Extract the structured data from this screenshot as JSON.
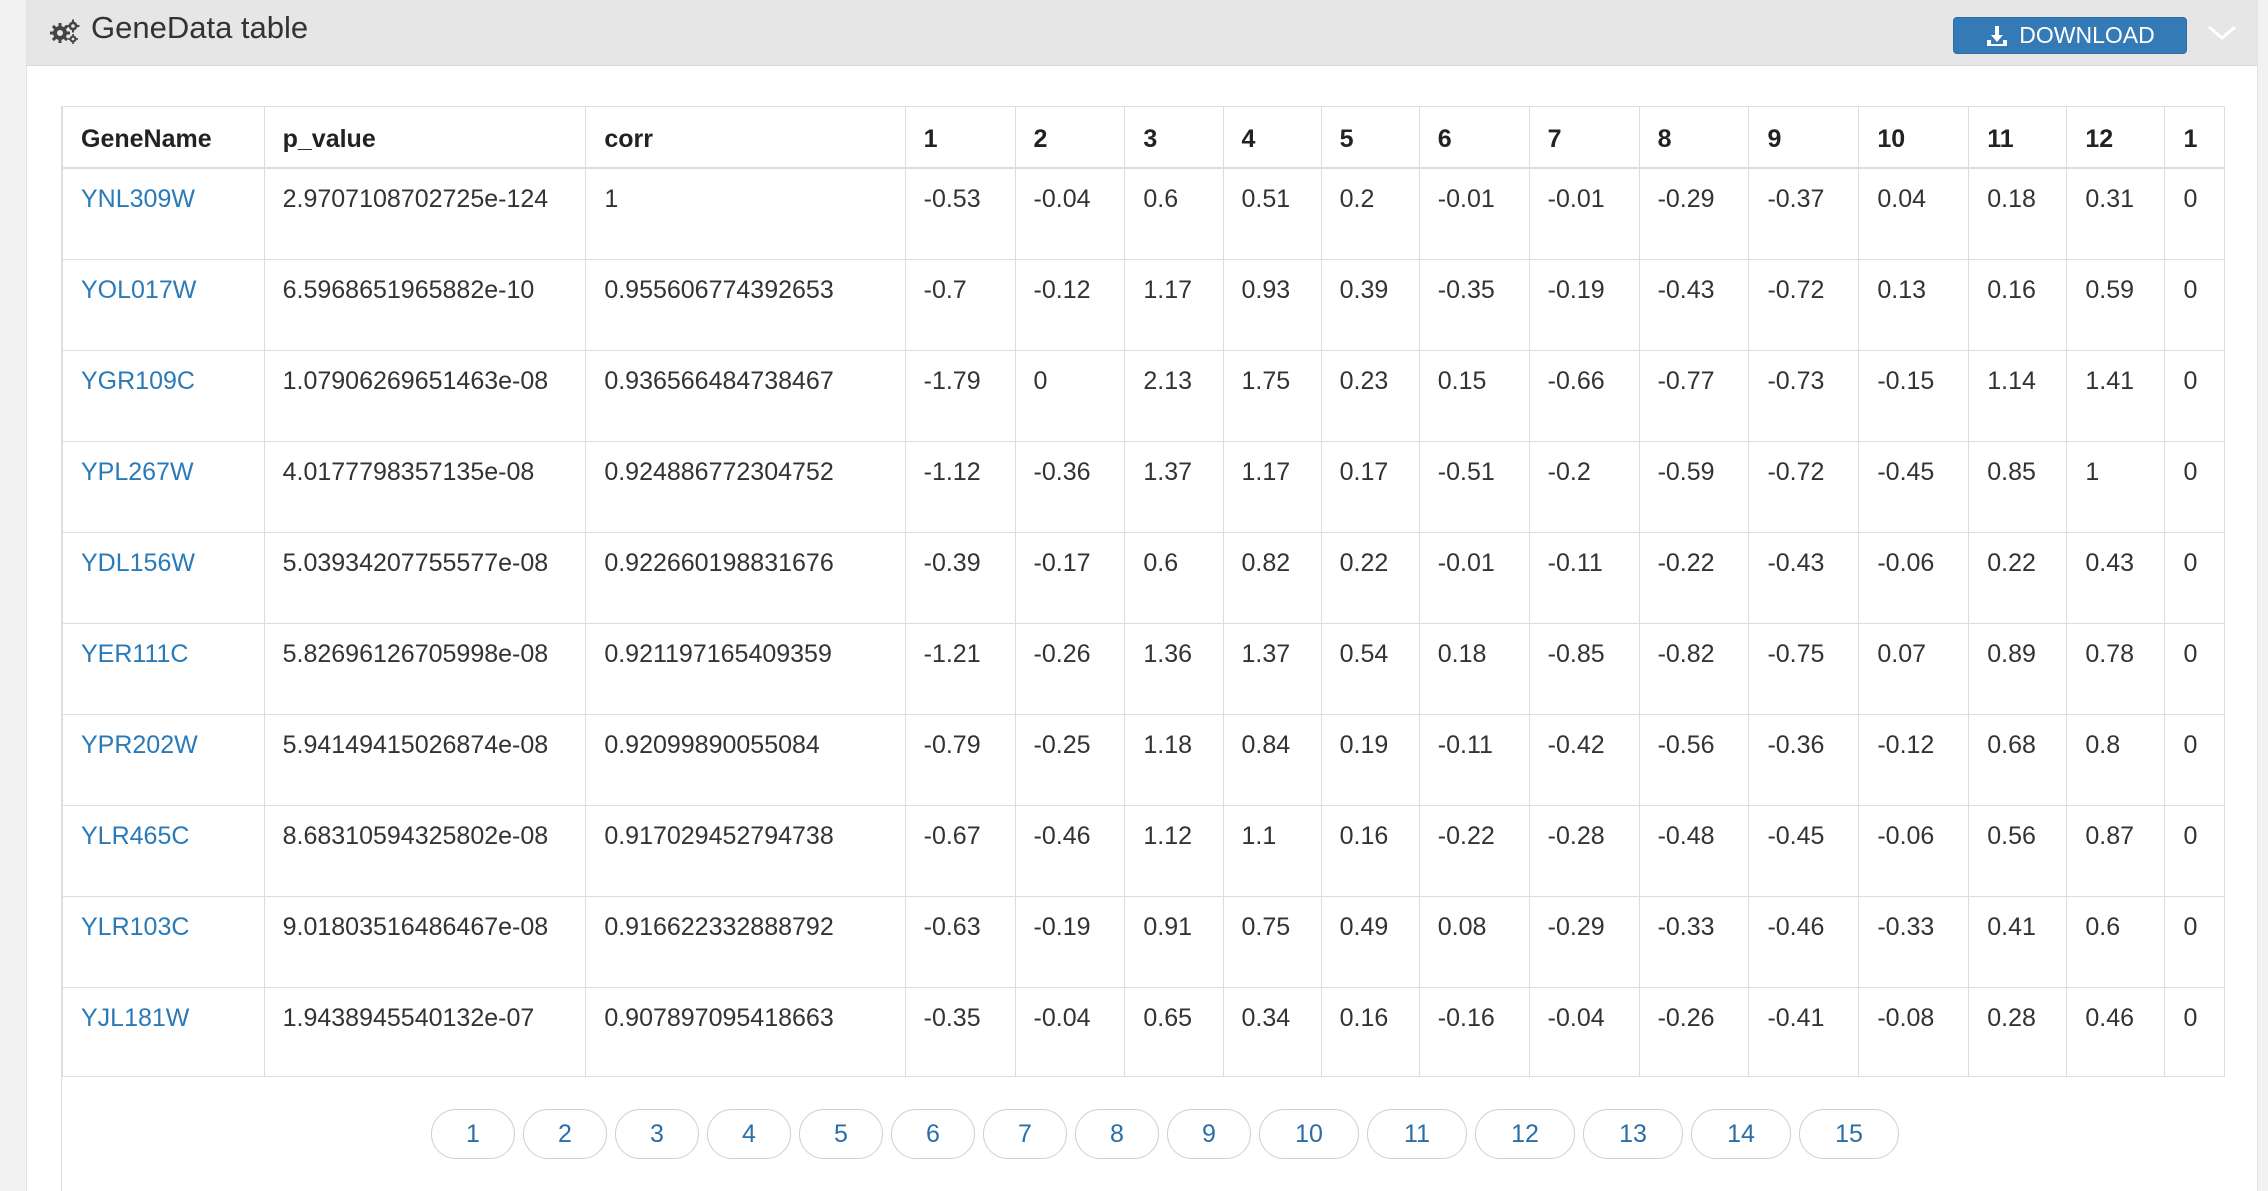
{
  "panel": {
    "title": "GeneData table",
    "icon": "gears-icon",
    "download_label": "DOWNLOAD",
    "accent": "#337ab7",
    "link_color": "#2a7ab8"
  },
  "table": {
    "headers": [
      "GeneName",
      "p_value",
      "corr",
      "1",
      "2",
      "3",
      "4",
      "5",
      "6",
      "7",
      "8",
      "9",
      "10",
      "11",
      "12",
      "1"
    ],
    "rows": [
      [
        "YNL309W",
        "2.9707108702725e-124",
        "1",
        "-0.53",
        "-0.04",
        "0.6",
        "0.51",
        "0.2",
        "-0.01",
        "-0.01",
        "-0.29",
        "-0.37",
        "0.04",
        "0.18",
        "0.31",
        "0"
      ],
      [
        "YOL017W",
        "6.5968651965882e-10",
        "0.955606774392653",
        "-0.7",
        "-0.12",
        "1.17",
        "0.93",
        "0.39",
        "-0.35",
        "-0.19",
        "-0.43",
        "-0.72",
        "0.13",
        "0.16",
        "0.59",
        "0"
      ],
      [
        "YGR109C",
        "1.07906269651463e-08",
        "0.936566484738467",
        "-1.79",
        "0",
        "2.13",
        "1.75",
        "0.23",
        "0.15",
        "-0.66",
        "-0.77",
        "-0.73",
        "-0.15",
        "1.14",
        "1.41",
        "0"
      ],
      [
        "YPL267W",
        "4.0177798357135e-08",
        "0.924886772304752",
        "-1.12",
        "-0.36",
        "1.37",
        "1.17",
        "0.17",
        "-0.51",
        "-0.2",
        "-0.59",
        "-0.72",
        "-0.45",
        "0.85",
        "1",
        "0"
      ],
      [
        "YDL156W",
        "5.03934207755577e-08",
        "0.922660198831676",
        "-0.39",
        "-0.17",
        "0.6",
        "0.82",
        "0.22",
        "-0.01",
        "-0.11",
        "-0.22",
        "-0.43",
        "-0.06",
        "0.22",
        "0.43",
        "0"
      ],
      [
        "YER111C",
        "5.82696126705998e-08",
        "0.921197165409359",
        "-1.21",
        "-0.26",
        "1.36",
        "1.37",
        "0.54",
        "0.18",
        "-0.85",
        "-0.82",
        "-0.75",
        "0.07",
        "0.89",
        "0.78",
        "0"
      ],
      [
        "YPR202W",
        "5.94149415026874e-08",
        "0.92099890055084",
        "-0.79",
        "-0.25",
        "1.18",
        "0.84",
        "0.19",
        "-0.11",
        "-0.42",
        "-0.56",
        "-0.36",
        "-0.12",
        "0.68",
        "0.8",
        "0"
      ],
      [
        "YLR465C",
        "8.68310594325802e-08",
        "0.917029452794738",
        "-0.67",
        "-0.46",
        "1.12",
        "1.1",
        "0.16",
        "-0.22",
        "-0.28",
        "-0.48",
        "-0.45",
        "-0.06",
        "0.56",
        "0.87",
        "0"
      ],
      [
        "YLR103C",
        "9.01803516486467e-08",
        "0.916622332888792",
        "-0.63",
        "-0.19",
        "0.91",
        "0.75",
        "0.49",
        "0.08",
        "-0.29",
        "-0.33",
        "-0.46",
        "-0.33",
        "0.41",
        "0.6",
        "0"
      ],
      [
        "YJL181W",
        "1.9438945540132e-07",
        "0.907897095418663",
        "-0.35",
        "-0.04",
        "0.65",
        "0.34",
        "0.16",
        "-0.16",
        "-0.04",
        "-0.26",
        "-0.41",
        "-0.08",
        "0.28",
        "0.46",
        "0"
      ]
    ]
  },
  "pagination": {
    "pages": [
      "1",
      "2",
      "3",
      "4",
      "5",
      "6",
      "7",
      "8",
      "9",
      "10",
      "11",
      "12",
      "13",
      "14",
      "15"
    ]
  }
}
